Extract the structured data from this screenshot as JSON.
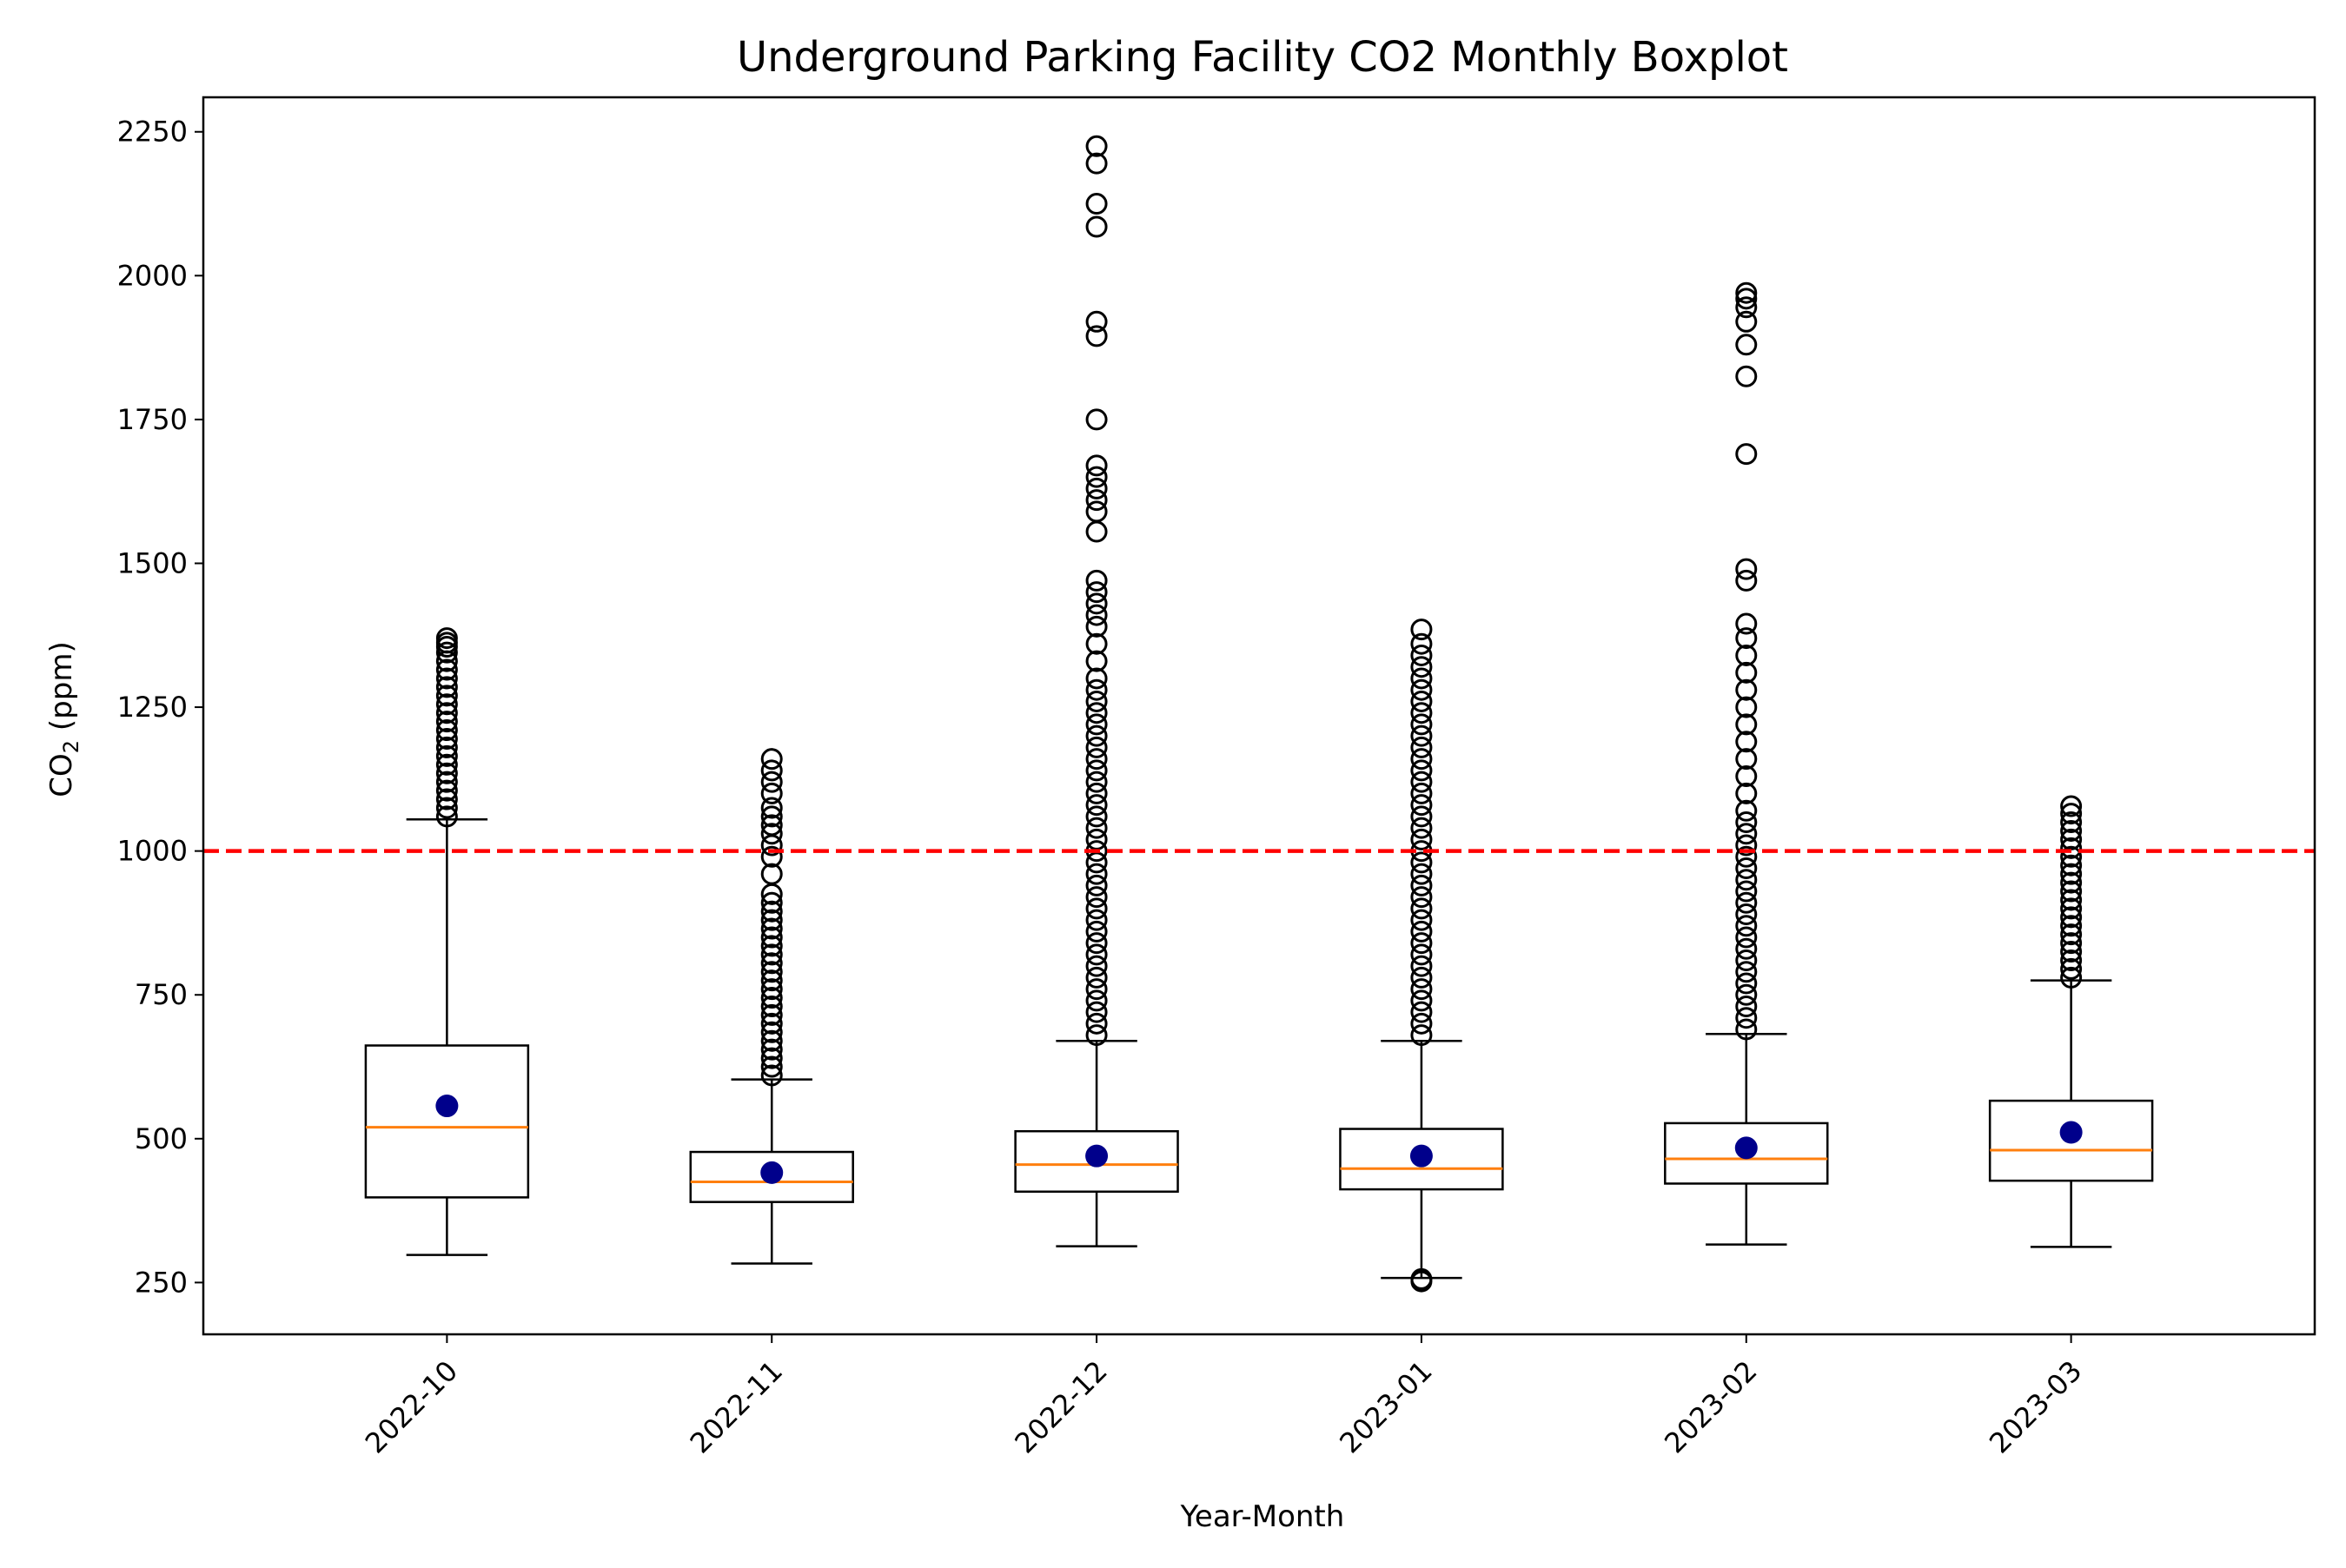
{
  "chart_data": {
    "type": "boxplot",
    "title": "Underground Parking Facility CO2 Monthly Boxplot",
    "xlabel": "Year-Month",
    "ylabel": {
      "main": "CO",
      "subscript": "2",
      "suffix": " (ppm)"
    },
    "ylim": [
      160,
      2310
    ],
    "yticks": [
      250,
      500,
      750,
      1000,
      1250,
      1500,
      1750,
      2000,
      2250
    ],
    "reference_line": {
      "value": 1000,
      "color": "#ff0000",
      "style": "dashed"
    },
    "colors": {
      "median": "#ff7f0e",
      "mean": "#00008b",
      "box": "#000000",
      "flier": "#000000"
    },
    "grid": false,
    "categories": [
      "2022-10",
      "2022-11",
      "2022-12",
      "2023-01",
      "2023-02",
      "2023-03"
    ],
    "boxes": [
      {
        "label": "2022-10",
        "whisker_low": 298,
        "q1": 398,
        "median": 520,
        "q3": 662,
        "whisker_high": 1055,
        "mean": 557,
        "fliers": [
          1060,
          1075,
          1090,
          1105,
          1120,
          1135,
          1150,
          1165,
          1180,
          1195,
          1210,
          1225,
          1240,
          1255,
          1270,
          1285,
          1300,
          1315,
          1330,
          1345,
          1355,
          1362,
          1370
        ]
      },
      {
        "label": "2022-11",
        "whisker_low": 283,
        "q1": 390,
        "median": 425,
        "q3": 477,
        "whisker_high": 603,
        "mean": 441,
        "fliers": [
          610,
          625,
          640,
          655,
          670,
          685,
          700,
          715,
          730,
          745,
          760,
          775,
          790,
          805,
          820,
          835,
          850,
          865,
          880,
          895,
          910,
          925,
          960,
          990,
          1010,
          1030,
          1045,
          1060,
          1075,
          1100,
          1120,
          1140,
          1160
        ]
      },
      {
        "label": "2022-12",
        "whisker_low": 313,
        "q1": 408,
        "median": 455,
        "q3": 513,
        "whisker_high": 670,
        "mean": 470,
        "fliers": [
          680,
          700,
          720,
          740,
          760,
          780,
          800,
          820,
          840,
          860,
          880,
          900,
          920,
          940,
          960,
          980,
          1000,
          1020,
          1040,
          1060,
          1080,
          1100,
          1120,
          1140,
          1160,
          1180,
          1200,
          1220,
          1240,
          1260,
          1280,
          1300,
          1330,
          1360,
          1390,
          1410,
          1430,
          1450,
          1470,
          1555,
          1590,
          1610,
          1630,
          1650,
          1670,
          1750,
          1895,
          1920,
          2085,
          2125,
          2195,
          2225
        ]
      },
      {
        "label": "2023-01",
        "whisker_low": 258,
        "q1": 412,
        "median": 448,
        "q3": 517,
        "whisker_high": 670,
        "mean": 470,
        "fliers": [
          252,
          256,
          680,
          700,
          720,
          740,
          760,
          780,
          800,
          820,
          840,
          860,
          880,
          900,
          920,
          940,
          960,
          980,
          1000,
          1020,
          1040,
          1060,
          1080,
          1100,
          1120,
          1140,
          1160,
          1180,
          1200,
          1220,
          1240,
          1260,
          1280,
          1300,
          1320,
          1340,
          1360,
          1385
        ]
      },
      {
        "label": "2023-02",
        "whisker_low": 316,
        "q1": 422,
        "median": 465,
        "q3": 527,
        "whisker_high": 682,
        "mean": 484,
        "fliers": [
          690,
          710,
          730,
          750,
          770,
          790,
          810,
          830,
          850,
          870,
          890,
          910,
          930,
          950,
          970,
          990,
          1010,
          1030,
          1050,
          1070,
          1100,
          1130,
          1160,
          1190,
          1220,
          1250,
          1280,
          1310,
          1340,
          1370,
          1395,
          1470,
          1490,
          1690,
          1825,
          1880,
          1920,
          1945,
          1960,
          1970
        ]
      },
      {
        "label": "2023-03",
        "whisker_low": 312,
        "q1": 427,
        "median": 480,
        "q3": 566,
        "whisker_high": 775,
        "mean": 511,
        "fliers": [
          780,
          795,
          810,
          825,
          840,
          855,
          870,
          885,
          900,
          915,
          930,
          945,
          960,
          975,
          990,
          1005,
          1020,
          1035,
          1050,
          1065,
          1078
        ]
      }
    ]
  }
}
